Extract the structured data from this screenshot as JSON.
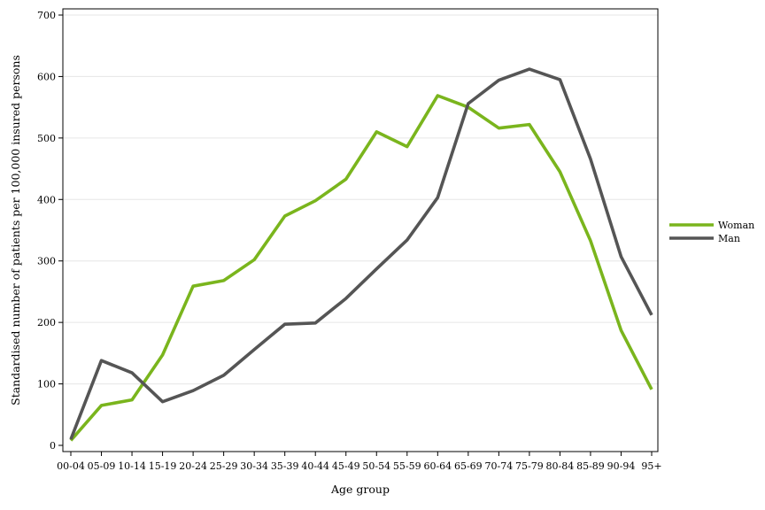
{
  "chart_data": {
    "type": "line",
    "title": "",
    "xlabel": "Age group",
    "ylabel": "Standardised number of patients per 100,000 insured persons",
    "categories": [
      "00-04",
      "05-09",
      "10-14",
      "15-19",
      "20-24",
      "25-29",
      "30-34",
      "35-39",
      "40-44",
      "45-49",
      "50-54",
      "55-59",
      "60-64",
      "65-69",
      "70-74",
      "75-79",
      "80-84",
      "85-89",
      "90-94",
      "95+"
    ],
    "ylim": [
      0,
      700
    ],
    "yticks": [
      0,
      100,
      200,
      300,
      400,
      500,
      600,
      700
    ],
    "grid": true,
    "legend_position": "right",
    "series": [
      {
        "name": "Woman",
        "color": "#7ab51d",
        "values": [
          8,
          65,
          74,
          147,
          259,
          268,
          302,
          373,
          398,
          433,
          510,
          486,
          569,
          550,
          516,
          522,
          445,
          333,
          187,
          91
        ]
      },
      {
        "name": "Man",
        "color": "#555555",
        "values": [
          10,
          138,
          118,
          71,
          89,
          114,
          156,
          197,
          199,
          239,
          287,
          334,
          403,
          556,
          594,
          612,
          595,
          466,
          307,
          212
        ]
      }
    ]
  }
}
